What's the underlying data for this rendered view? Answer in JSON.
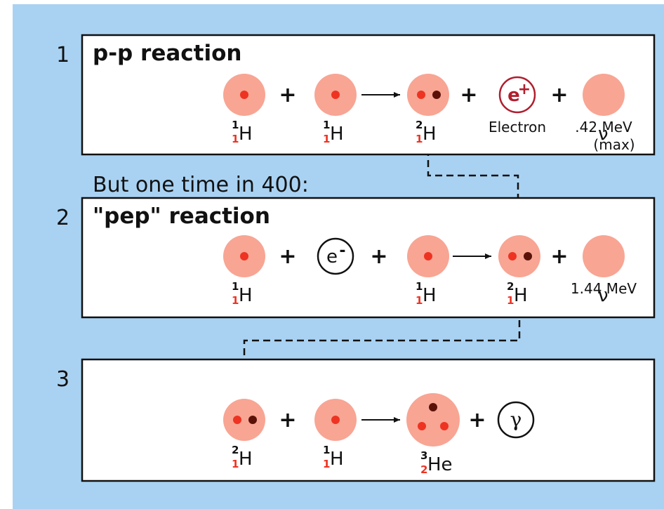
{
  "plus": "+",
  "note": "But one time in 400:",
  "steps": [
    {
      "number": "1",
      "title": "p-p reaction",
      "particles": [
        {
          "mass": "1",
          "atomic": "1",
          "symbol": "H"
        },
        {
          "mass": "1",
          "atomic": "1",
          "symbol": "H"
        },
        {
          "mass": "2",
          "atomic": "1",
          "symbol": "H"
        },
        {
          "symbol": "e",
          "charge": "+",
          "label": "Electron"
        },
        {
          "symbol": "ν",
          "label": ".42 MeV",
          "note": "(max)"
        }
      ]
    },
    {
      "number": "2",
      "title": "\"pep\" reaction",
      "particles": [
        {
          "mass": "1",
          "atomic": "1",
          "symbol": "H"
        },
        {
          "symbol": "e",
          "charge": "-"
        },
        {
          "mass": "1",
          "atomic": "1",
          "symbol": "H"
        },
        {
          "mass": "2",
          "atomic": "1",
          "symbol": "H"
        },
        {
          "symbol": "ν",
          "label": "1.44 MeV"
        }
      ]
    },
    {
      "number": "3",
      "particles": [
        {
          "mass": "2",
          "atomic": "1",
          "symbol": "H"
        },
        {
          "mass": "1",
          "atomic": "1",
          "symbol": "H"
        },
        {
          "mass": "3",
          "atomic": "2",
          "symbol": "He"
        },
        {
          "symbol": "γ"
        }
      ]
    }
  ]
}
